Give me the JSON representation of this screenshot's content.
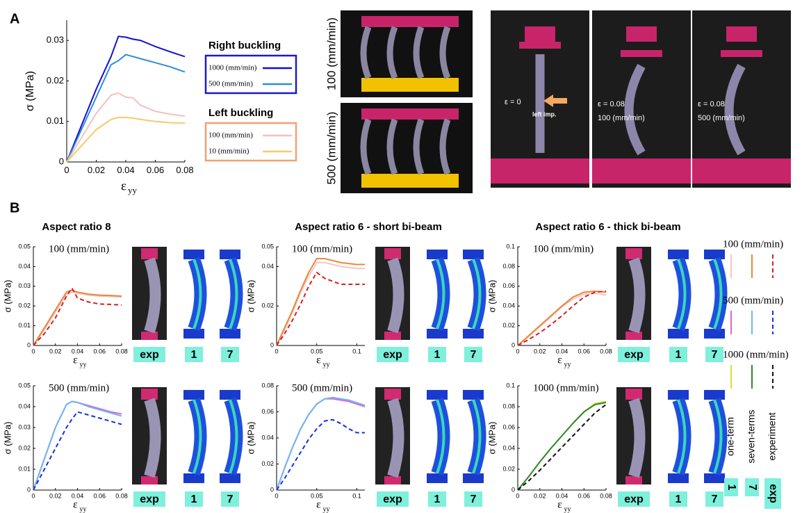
{
  "panel_labels": [
    "A",
    "B"
  ],
  "chart_data": [
    {
      "type": "line",
      "y_label": "σ (MPa)",
      "x_label": "ε",
      "x_label_sub": "yy",
      "xlim": [
        0,
        0.08
      ],
      "xticks": [
        0,
        0.02,
        0.04,
        0.06,
        0.08
      ],
      "ylim": [
        0,
        0.035
      ],
      "yticks": [
        0,
        0.01,
        0.02,
        0.03
      ],
      "x": [
        0,
        0.01,
        0.02,
        0.03,
        0.035,
        0.04,
        0.045,
        0.05,
        0.06,
        0.07,
        0.08
      ],
      "legend_groups": [
        {
          "title": "Right buckling",
          "color": "#1a1acc"
        },
        {
          "title": "Left buckling",
          "color": "#f4a070"
        }
      ],
      "series": [
        {
          "name": "1000 (mm/min)",
          "color": "#1010d0",
          "values": [
            0,
            0.009,
            0.018,
            0.026,
            0.031,
            0.0308,
            0.0303,
            0.03,
            0.0285,
            0.0272,
            0.026
          ]
        },
        {
          "name": "500 (mm/min)",
          "color": "#2a8de0",
          "values": [
            0,
            0.008,
            0.016,
            0.024,
            0.025,
            0.0265,
            0.026,
            0.0255,
            0.0245,
            0.0235,
            0.0222
          ]
        },
        {
          "name": "100 (mm/min)",
          "color": "#f4c0c0",
          "values": [
            0,
            0.006,
            0.012,
            0.0165,
            0.017,
            0.016,
            0.0158,
            0.014,
            0.0125,
            0.0118,
            0.0113
          ]
        },
        {
          "name": "10 (mm/min)",
          "color": "#f5c96a",
          "values": [
            0,
            0.004,
            0.008,
            0.0105,
            0.011,
            0.011,
            0.0108,
            0.0105,
            0.01,
            0.0097,
            0.0096
          ]
        }
      ]
    },
    {
      "type": "line",
      "title": "Aspect ratio 8",
      "annotation": "100 (mm/min)",
      "y_label": "σ (MPa)",
      "x_label": "ε",
      "x_label_sub": "yy",
      "xlim": [
        0,
        0.08
      ],
      "xticks": [
        0,
        0.02,
        0.04,
        0.06,
        0.08
      ],
      "ylim": [
        0,
        0.05
      ],
      "yticks": [
        0,
        0.01,
        0.02,
        0.03,
        0.04,
        0.05
      ],
      "x": [
        0,
        0.01,
        0.02,
        0.03,
        0.035,
        0.04,
        0.05,
        0.06,
        0.07,
        0.08
      ],
      "series": [
        {
          "color": "#f4c6c6",
          "dashed": false,
          "values": [
            0,
            0.008,
            0.017,
            0.026,
            0.027,
            0.0265,
            0.0255,
            0.025,
            0.0248,
            0.0245
          ]
        },
        {
          "color": "#e8883a",
          "dashed": false,
          "values": [
            0,
            0.009,
            0.018,
            0.027,
            0.028,
            0.027,
            0.026,
            0.0255,
            0.0253,
            0.025
          ]
        },
        {
          "color": "#d42020",
          "dashed": true,
          "values": [
            0,
            0.006,
            0.014,
            0.025,
            0.029,
            0.024,
            0.022,
            0.021,
            0.0208,
            0.0205
          ]
        }
      ],
      "image_labels": [
        "exp",
        "1",
        "7"
      ]
    },
    {
      "type": "line",
      "title": "Aspect ratio 6 - short bi-beam",
      "annotation": "100 (mm/min)",
      "y_label": "σ (MPa)",
      "x_label": "ε",
      "x_label_sub": "yy",
      "xlim": [
        0,
        0.11
      ],
      "xticks": [
        0,
        0.05,
        0.1
      ],
      "ylim": [
        0,
        0.05
      ],
      "yticks": [
        0,
        0.02,
        0.04,
        0.05
      ],
      "x": [
        0,
        0.01,
        0.02,
        0.03,
        0.04,
        0.05,
        0.06,
        0.08,
        0.1,
        0.11
      ],
      "series": [
        {
          "color": "#f4c6c6",
          "dashed": false,
          "values": [
            0,
            0.008,
            0.017,
            0.027,
            0.035,
            0.042,
            0.042,
            0.04,
            0.039,
            0.039
          ]
        },
        {
          "color": "#e8883a",
          "dashed": false,
          "values": [
            0,
            0.009,
            0.018,
            0.028,
            0.037,
            0.044,
            0.044,
            0.042,
            0.041,
            0.041
          ]
        },
        {
          "color": "#d42020",
          "dashed": true,
          "values": [
            0,
            0.006,
            0.013,
            0.021,
            0.03,
            0.037,
            0.034,
            0.031,
            0.031,
            0.031
          ]
        }
      ],
      "image_labels": [
        "exp",
        "1",
        "7"
      ]
    },
    {
      "type": "line",
      "title": "Aspect ratio 6 - thick bi-beam",
      "annotation": "100 (mm/min)",
      "y_label": "σ (MPa)",
      "x_label": "ε",
      "x_label_sub": "yy",
      "xlim": [
        0,
        0.08
      ],
      "xticks": [
        0,
        0.02,
        0.04,
        0.06,
        0.08
      ],
      "ylim": [
        0,
        0.1
      ],
      "yticks": [
        0,
        0.02,
        0.04,
        0.06,
        0.08,
        0.1
      ],
      "x": [
        0,
        0.01,
        0.02,
        0.03,
        0.04,
        0.05,
        0.06,
        0.07,
        0.08
      ],
      "series": [
        {
          "color": "#f4c6c6",
          "dashed": false,
          "values": [
            0,
            0.009,
            0.019,
            0.029,
            0.039,
            0.047,
            0.052,
            0.053,
            0.051
          ]
        },
        {
          "color": "#e8883a",
          "dashed": false,
          "values": [
            0,
            0.01,
            0.02,
            0.03,
            0.04,
            0.049,
            0.054,
            0.055,
            0.054
          ]
        },
        {
          "color": "#d42020",
          "dashed": true,
          "values": [
            0,
            0.006,
            0.013,
            0.021,
            0.03,
            0.04,
            0.049,
            0.054,
            0.055
          ]
        }
      ],
      "image_labels": [
        "exp",
        "1",
        "7"
      ]
    },
    {
      "type": "line",
      "annotation": "500 (mm/min)",
      "y_label": "σ (MPa)",
      "x_label": "ε",
      "x_label_sub": "yy",
      "xlim": [
        0,
        0.08
      ],
      "xticks": [
        0,
        0.02,
        0.04,
        0.06,
        0.08
      ],
      "ylim": [
        0,
        0.05
      ],
      "yticks": [
        0,
        0.01,
        0.02,
        0.03,
        0.04,
        0.05
      ],
      "x": [
        0,
        0.01,
        0.02,
        0.03,
        0.035,
        0.04,
        0.05,
        0.06,
        0.07,
        0.08
      ],
      "series": [
        {
          "color": "#e066d0",
          "dashed": false,
          "values": [
            0,
            0.015,
            0.03,
            0.041,
            0.0425,
            0.042,
            0.0405,
            0.039,
            0.0375,
            0.0365
          ]
        },
        {
          "color": "#6ab8f0",
          "dashed": false,
          "values": [
            0,
            0.015,
            0.03,
            0.041,
            0.0425,
            0.042,
            0.04,
            0.0385,
            0.037,
            0.0355
          ]
        },
        {
          "color": "#1a2ee0",
          "dashed": true,
          "values": [
            0,
            0.01,
            0.02,
            0.03,
            0.034,
            0.0375,
            0.036,
            0.0345,
            0.033,
            0.0315
          ]
        }
      ],
      "image_labels": [
        "exp",
        "1",
        "7"
      ]
    },
    {
      "type": "line",
      "annotation": "500 (mm/min)",
      "y_label": "σ (MPa)",
      "x_label": "ε",
      "x_label_sub": "yy",
      "xlim": [
        0,
        0.11
      ],
      "xticks": [
        0,
        0.05,
        0.1
      ],
      "ylim": [
        0,
        0.08
      ],
      "yticks": [
        0,
        0.02,
        0.04,
        0.06,
        0.08
      ],
      "x": [
        0,
        0.01,
        0.02,
        0.03,
        0.04,
        0.05,
        0.06,
        0.07,
        0.08,
        0.09,
        0.1,
        0.11
      ],
      "series": [
        {
          "color": "#e066d0",
          "dashed": false,
          "values": [
            0,
            0.017,
            0.033,
            0.047,
            0.058,
            0.066,
            0.07,
            0.07,
            0.069,
            0.068,
            0.066,
            0.064
          ]
        },
        {
          "color": "#6ab8f0",
          "dashed": false,
          "values": [
            0,
            0.017,
            0.033,
            0.047,
            0.058,
            0.066,
            0.07,
            0.071,
            0.07,
            0.069,
            0.067,
            0.065
          ]
        },
        {
          "color": "#1a2ee0",
          "dashed": true,
          "values": [
            0,
            0.009,
            0.019,
            0.029,
            0.039,
            0.047,
            0.053,
            0.054,
            0.051,
            0.047,
            0.044,
            0.044
          ]
        }
      ],
      "image_labels": [
        "exp",
        "1",
        "7"
      ]
    },
    {
      "type": "line",
      "annotation": "1000 (mm/min)",
      "y_label": "σ (MPa)",
      "x_label": "ε",
      "x_label_sub": "yy",
      "xlim": [
        0,
        0.08
      ],
      "xticks": [
        0,
        0.02,
        0.04,
        0.06,
        0.08
      ],
      "ylim": [
        0,
        0.1
      ],
      "yticks": [
        0,
        0.02,
        0.04,
        0.06,
        0.08,
        0.1
      ],
      "x": [
        0,
        0.01,
        0.02,
        0.03,
        0.04,
        0.05,
        0.06,
        0.07,
        0.08
      ],
      "series": [
        {
          "color": "#d8e030",
          "dashed": false,
          "values": [
            0,
            0.013,
            0.027,
            0.04,
            0.052,
            0.064,
            0.075,
            0.083,
            0.085
          ]
        },
        {
          "color": "#2a8a2a",
          "dashed": false,
          "values": [
            0,
            0.013,
            0.027,
            0.04,
            0.052,
            0.064,
            0.075,
            0.082,
            0.084
          ]
        },
        {
          "color": "#111111",
          "dashed": true,
          "values": [
            0,
            0.009,
            0.019,
            0.03,
            0.041,
            0.052,
            0.063,
            0.074,
            0.082
          ]
        }
      ],
      "image_labels": [
        "exp",
        "1",
        "7"
      ]
    }
  ],
  "photos_a": {
    "rates": [
      "100 (mm/min)",
      "500 (mm/min)"
    ],
    "frames": [
      {
        "strain": "ε = 0",
        "note": "left imp."
      },
      {
        "strain": "ε = 0.08",
        "note": "100 (mm/min)"
      },
      {
        "strain": "ε = 0.08",
        "note": "500 (mm/min)"
      }
    ]
  },
  "legend_b": {
    "groups": [
      {
        "label": "100 (mm/min)",
        "colors": [
          "#f4c6c6",
          "#e8883a",
          "#d42020"
        ]
      },
      {
        "label": "500 (mm/min)",
        "colors": [
          "#e066d0",
          "#6ab8f0",
          "#1a2ee0"
        ]
      },
      {
        "label": "1000 (mm/min)",
        "colors": [
          "#d8e030",
          "#2a8a2a",
          "#111111"
        ]
      }
    ],
    "dashed": [
      false,
      false,
      true
    ],
    "names": [
      "one-term",
      "seven-terms",
      "experiment"
    ],
    "badges": [
      "1",
      "7",
      "exp"
    ]
  }
}
